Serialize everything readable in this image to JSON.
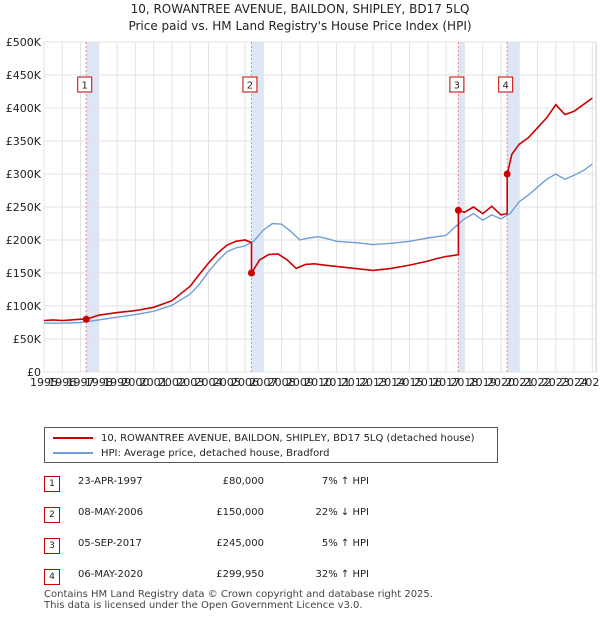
{
  "title_line1": "10, ROWANTREE AVENUE, BAILDON, SHIPLEY, BD17 5LQ",
  "title_line2": "Price paid vs. HM Land Registry's House Price Index (HPI)",
  "colors": {
    "price_line": "#cc0000",
    "hpi_line": "#6f9fd8",
    "sale_shade": "#dde6f5",
    "sale_dash": "#e88888"
  },
  "chart_data": {
    "type": "line",
    "xlim": [
      1995.0,
      2025.2
    ],
    "ylim": [
      0,
      500000
    ],
    "yticks": [
      0,
      50000,
      100000,
      150000,
      200000,
      250000,
      300000,
      350000,
      400000,
      450000,
      500000
    ],
    "ytick_labels": [
      "£0",
      "£50K",
      "£100K",
      "£150K",
      "£200K",
      "£250K",
      "£300K",
      "£350K",
      "£400K",
      "£450K",
      "£500K"
    ],
    "xticks": [
      1995,
      1996,
      1997,
      1998,
      1999,
      2000,
      2001,
      2002,
      2003,
      2004,
      2005,
      2006,
      2007,
      2008,
      2009,
      2010,
      2011,
      2012,
      2013,
      2014,
      2015,
      2016,
      2017,
      2018,
      2019,
      2020,
      2021,
      2022,
      2023,
      2024,
      2025
    ],
    "series": [
      {
        "name": "10, ROWANTREE AVENUE, BAILDON, SHIPLEY, BD17 5LQ (detached house)",
        "x": [
          1995.0,
          1995.5,
          1996.0,
          1996.5,
          1997.0,
          1997.31,
          1997.31,
          1998.0,
          1999.0,
          2000.0,
          2001.0,
          2002.0,
          2003.0,
          2003.5,
          2004.0,
          2004.5,
          2005.0,
          2005.5,
          2006.0,
          2006.35,
          2006.35,
          2006.8,
          2007.3,
          2007.8,
          2008.3,
          2008.8,
          2009.3,
          2009.8,
          2010.3,
          2011.0,
          2012.0,
          2013.0,
          2014.0,
          2015.0,
          2015.5,
          2016.0,
          2016.5,
          2017.0,
          2017.5,
          2017.67,
          2017.67,
          2018.0,
          2018.5,
          2019.0,
          2019.5,
          2020.0,
          2020.34,
          2020.34,
          2020.6,
          2021.0,
          2021.5,
          2022.0,
          2022.5,
          2023.0,
          2023.5,
          2024.0,
          2024.5,
          2025.0
        ],
        "y": [
          78000,
          79000,
          78000,
          79000,
          80000,
          80000,
          80000,
          86000,
          90000,
          93000,
          98000,
          108000,
          130000,
          148000,
          165000,
          180000,
          192000,
          198000,
          200000,
          196000,
          150000,
          170000,
          178000,
          179000,
          170000,
          157000,
          163000,
          164000,
          162000,
          160000,
          157000,
          154000,
          157000,
          162000,
          165000,
          168000,
          172000,
          175000,
          177000,
          178000,
          245000,
          242000,
          250000,
          240000,
          251000,
          238000,
          240000,
          299950,
          330000,
          345000,
          355000,
          370000,
          385000,
          405000,
          390000,
          395000,
          405000,
          415000
        ]
      },
      {
        "name": "HPI: Average price, detached house, Bradford",
        "x": [
          1995.0,
          1996.0,
          1997.0,
          1998.0,
          1999.0,
          2000.0,
          2001.0,
          2002.0,
          2003.0,
          2003.5,
          2004.0,
          2004.5,
          2005.0,
          2005.5,
          2006.0,
          2006.5,
          2007.0,
          2007.5,
          2008.0,
          2008.5,
          2009.0,
          2009.5,
          2010.0,
          2010.5,
          2011.0,
          2012.0,
          2013.0,
          2014.0,
          2015.0,
          2016.0,
          2017.0,
          2017.5,
          2018.0,
          2018.5,
          2019.0,
          2019.5,
          2020.0,
          2020.5,
          2021.0,
          2021.5,
          2022.0,
          2022.5,
          2023.0,
          2023.5,
          2024.0,
          2024.5,
          2025.0
        ],
        "y": [
          74000,
          74000,
          75000,
          79000,
          83000,
          87000,
          92000,
          101000,
          118000,
          133000,
          152000,
          168000,
          182000,
          188000,
          191000,
          199000,
          215000,
          225000,
          224000,
          213000,
          200000,
          203000,
          205000,
          202000,
          198000,
          196000,
          193000,
          195000,
          198000,
          203000,
          207000,
          220000,
          232000,
          240000,
          230000,
          238000,
          232000,
          240000,
          258000,
          268000,
          280000,
          292000,
          300000,
          292000,
          298000,
          305000,
          315000
        ]
      }
    ],
    "sales": [
      {
        "n": "1",
        "x": 1997.31,
        "price": 80000
      },
      {
        "n": "2",
        "x": 2006.35,
        "price": 150000
      },
      {
        "n": "3",
        "x": 2017.67,
        "price": 245000
      },
      {
        "n": "4",
        "x": 2020.34,
        "price": 299950
      }
    ]
  },
  "legend": {
    "price": "10, ROWANTREE AVENUE, BAILDON, SHIPLEY, BD17 5LQ (detached house)",
    "hpi": "HPI: Average price, detached house, Bradford"
  },
  "table": [
    {
      "n": "1",
      "date": "23-APR-1997",
      "price": "£80,000",
      "hpi": "7% ↑ HPI"
    },
    {
      "n": "2",
      "date": "08-MAY-2006",
      "price": "£150,000",
      "hpi": "22% ↓ HPI"
    },
    {
      "n": "3",
      "date": "05-SEP-2017",
      "price": "£245,000",
      "hpi": "5% ↑ HPI"
    },
    {
      "n": "4",
      "date": "06-MAY-2020",
      "price": "£299,950",
      "hpi": "32% ↑ HPI"
    }
  ],
  "footer_line1": "Contains HM Land Registry data © Crown copyright and database right 2025.",
  "footer_line2": "This data is licensed under the Open Government Licence v3.0."
}
